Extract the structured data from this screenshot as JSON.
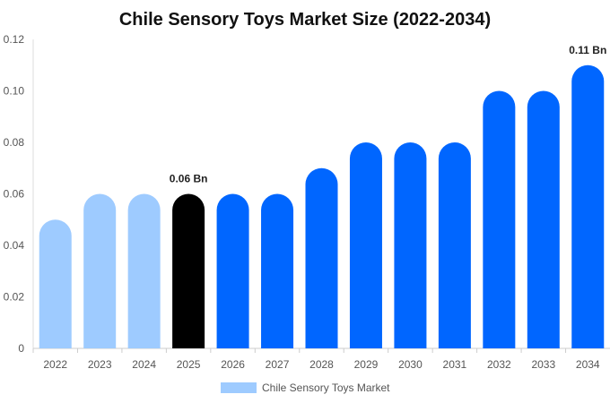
{
  "chart_data": {
    "type": "bar",
    "title": "Chile Sensory Toys Market Size (2022-2034)",
    "xlabel": "",
    "ylabel": "",
    "categories": [
      "2022",
      "2023",
      "2024",
      "2025",
      "2026",
      "2027",
      "2028",
      "2029",
      "2030",
      "2031",
      "2032",
      "2033",
      "2034"
    ],
    "series": [
      {
        "name": "Chile Sensory Toys Market",
        "values": [
          0.05,
          0.06,
          0.06,
          0.06,
          0.06,
          0.06,
          0.07,
          0.08,
          0.08,
          0.08,
          0.1,
          0.1,
          0.11
        ]
      }
    ],
    "ylim": [
      0,
      0.12
    ],
    "yticks": [
      "0",
      "0.02",
      "0.04",
      "0.06",
      "0.08",
      "0.10",
      "0.12"
    ],
    "data_labels": [
      {
        "category": "2025",
        "text": "0.06 Bn"
      },
      {
        "category": "2034",
        "text": "0.11 Bn"
      }
    ],
    "colors": {
      "historical": "#9ecbff",
      "current": "#000000",
      "forecast": "#0066ff"
    },
    "historical_categories": [
      "2022",
      "2023",
      "2024"
    ],
    "current_category": "2025",
    "grid": false,
    "legend": {
      "position": "bottom",
      "label": "Chile Sensory Toys Market",
      "color": "#9ecbff"
    }
  }
}
